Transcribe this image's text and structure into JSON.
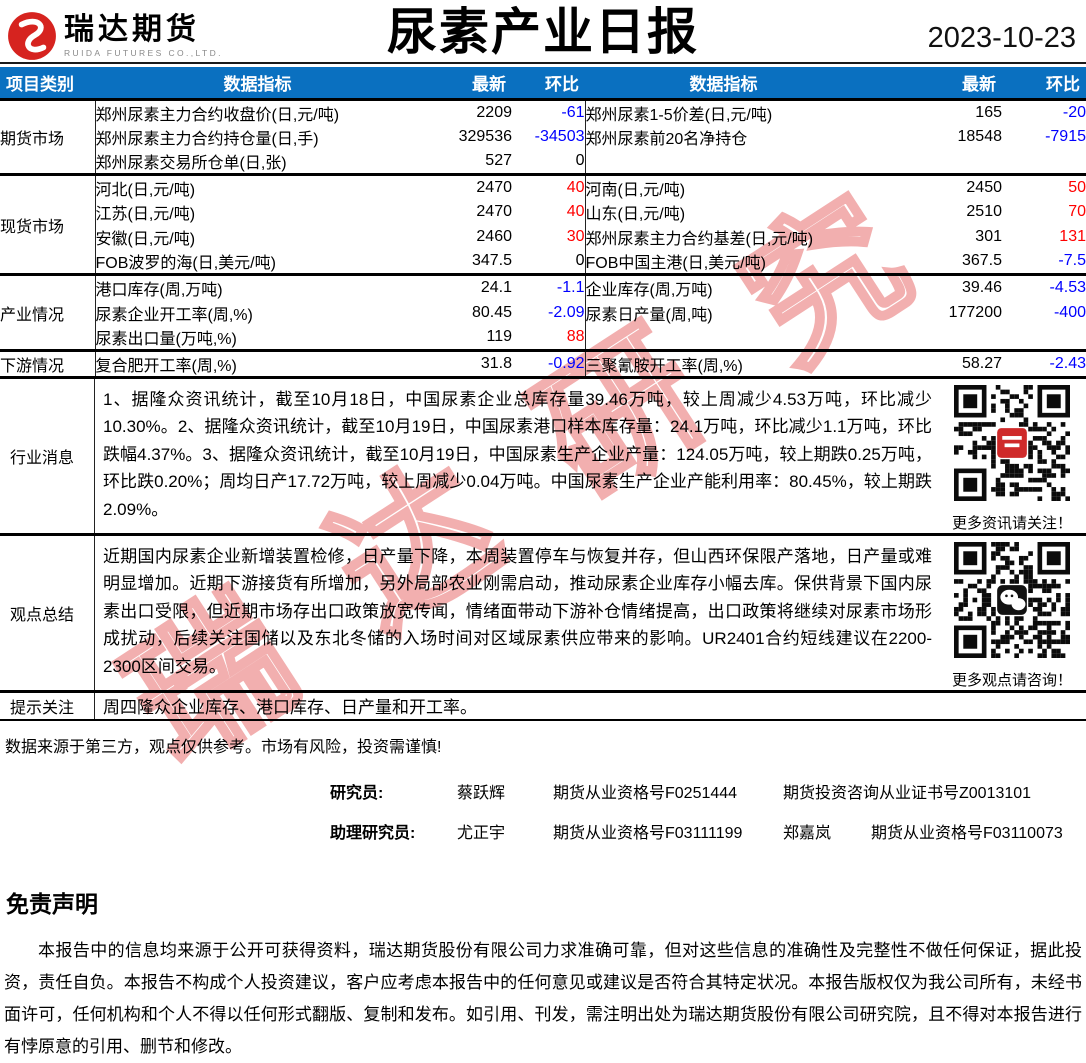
{
  "header": {
    "logo_name": "瑞达期货",
    "logo_sub": "RUIDA FUTURES CO.,LTD.",
    "title": "尿素产业日报",
    "date": "2023-10-23"
  },
  "colors": {
    "accent_blue": "#0a70c0",
    "up_red": "#ff0000",
    "down_blue": "#0000ff",
    "watermark_red": "#e45858",
    "logo_red": "#d6231f"
  },
  "watermark": "瑞达研究",
  "table": {
    "columns": [
      "项目类别",
      "数据指标",
      "最新",
      "环比",
      "数据指标",
      "最新",
      "环比"
    ],
    "sections": [
      {
        "category": "期货市场",
        "rows": [
          {
            "l_name": "郑州尿素主力合约收盘价(日,元/吨)",
            "l_val": "2209",
            "l_chg": "-61",
            "r_name": "郑州尿素1-5价差(日,元/吨)",
            "r_val": "165",
            "r_chg": "-20"
          },
          {
            "l_name": "郑州尿素主力合约持仓量(日,手)",
            "l_val": "329536",
            "l_chg": "-34503",
            "r_name": "郑州尿素前20名净持仓",
            "r_val": "18548",
            "r_chg": "-7915"
          },
          {
            "l_name": "郑州尿素交易所仓单(日,张)",
            "l_val": "527",
            "l_chg": "0",
            "r_name": "",
            "r_val": "",
            "r_chg": ""
          }
        ]
      },
      {
        "category": "现货市场",
        "rows": [
          {
            "l_name": "河北(日,元/吨)",
            "l_val": "2470",
            "l_chg": "40",
            "r_name": "河南(日,元/吨)",
            "r_val": "2450",
            "r_chg": "50"
          },
          {
            "l_name": "江苏(日,元/吨)",
            "l_val": "2470",
            "l_chg": "40",
            "r_name": "山东(日,元/吨)",
            "r_val": "2510",
            "r_chg": "70"
          },
          {
            "l_name": "安徽(日,元/吨)",
            "l_val": "2460",
            "l_chg": "30",
            "r_name": "郑州尿素主力合约基差(日,元/吨)",
            "r_val": "301",
            "r_chg": "131"
          },
          {
            "l_name": "FOB波罗的海(日,美元/吨)",
            "l_val": "347.5",
            "l_chg": "0",
            "r_name": "FOB中国主港(日,美元/吨)",
            "r_val": "367.5",
            "r_chg": "-7.5"
          }
        ]
      },
      {
        "category": "产业情况",
        "rows": [
          {
            "l_name": "港口库存(周,万吨)",
            "l_val": "24.1",
            "l_chg": "-1.1",
            "r_name": "企业库存(周,万吨)",
            "r_val": "39.46",
            "r_chg": "-4.53"
          },
          {
            "l_name": "尿素企业开工率(周,%)",
            "l_val": "80.45",
            "l_chg": "-2.09",
            "r_name": "尿素日产量(周,吨)",
            "r_val": "177200",
            "r_chg": "-400"
          },
          {
            "l_name": "尿素出口量(万吨,%)",
            "l_val": "119",
            "l_chg": "88",
            "r_name": "",
            "r_val": "",
            "r_chg": ""
          }
        ]
      },
      {
        "category": "下游情况",
        "rows": [
          {
            "l_name": "复合肥开工率(周,%)",
            "l_val": "31.8",
            "l_chg": "-0.92",
            "r_name": "三聚氰胺开工率(周,%)",
            "r_val": "58.27",
            "r_chg": "-2.43"
          }
        ]
      }
    ]
  },
  "news": {
    "category": "行业消息",
    "text": "1、据隆众资讯统计，截至10月18日，中国尿素企业总库存量39.46万吨，较上周减少4.53万吨，环比减少10.30%。2、据隆众资讯统计，截至10月19日，中国尿素港口样本库存量：24.1万吨，环比减少1.1万吨，环比跌幅4.37%。3、据隆众资讯统计，截至10月19日，中国尿素生产企业产量：124.05万吨，较上期跌0.25万吨，环比跌0.20%；周均日产17.72万吨，较上周减少0.04万吨。中国尿素生产企业产能利用率：80.45%，较上期跌2.09%。",
    "qr_caption": "更多资讯请关注！"
  },
  "view": {
    "category": "观点总结",
    "text": "近期国内尿素企业新增装置检修，日产量下降，本周装置停车与恢复并存，但山西环保限产落地，日产量或难明显增加。近期下游接货有所增加，另外局部农业刚需启动，推动尿素企业库存小幅去库。保供背景下国内尿素出口受限，但近期市场存出口政策放宽传闻，情绪面带动下游补仓情绪提高，出口政策将继续对尿素市场形成扰动，后续关注国储以及东北冬储的入场时间对区域尿素供应带来的影响。UR2401合约短线建议在2200-2300区间交易。",
    "qr_caption": "更多观点请咨询！"
  },
  "alert": {
    "category": "提示关注",
    "text": "周四隆众企业库存、港口库存、日产量和开工率。"
  },
  "footer": {
    "note": "数据来源于第三方，观点仅供参考。市场有风险，投资需谨慎!",
    "researchers": [
      {
        "role": "研究员:",
        "name": "蔡跃辉",
        "cert": "期货从业资格号F0251444",
        "name2": "",
        "cert2": "期货投资咨询从业证书号Z0013101"
      },
      {
        "role": "助理研究员:",
        "name": "尤正宇",
        "cert": "期货从业资格号F03111199",
        "name2": "郑嘉岚",
        "cert2": "期货从业资格号F03110073"
      }
    ]
  },
  "disclaimer": {
    "heading": "免责声明",
    "body": "本报告中的信息均来源于公开可获得资料，瑞达期货股份有限公司力求准确可靠，但对这些信息的准确性及完整性不做任何保证，据此投资，责任自负。本报告不构成个人投资建议，客户应考虑本报告中的任何意见或建议是否符合其特定状况。本报告版权仅为我公司所有，未经书面许可，任何机构和个人不得以任何形式翻版、复制和发布。如引用、刊发，需注明出处为瑞达期货股份有限公司研究院，且不得对本报告进行有悖原意的引用、删节和修改。"
  }
}
